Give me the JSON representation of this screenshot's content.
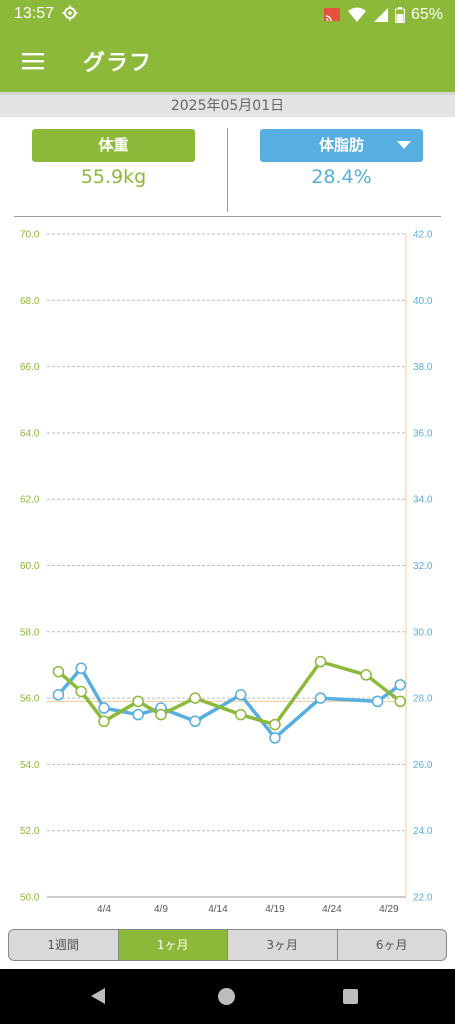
{
  "status_bar": {
    "time": "13:57",
    "battery": "65%",
    "icons": [
      "settings-icon",
      "cast-icon",
      "wifi-icon",
      "battery-icon"
    ]
  },
  "app_bar": {
    "title": "グラフ",
    "menu_icon": "hamburger-menu-icon"
  },
  "date": "2025年05月01日",
  "metrics": {
    "left": {
      "label": "体重",
      "value": "55.9kg",
      "color": "#8cb93a"
    },
    "right": {
      "label": "体脂肪",
      "value": "28.4%",
      "color": "#57aee0",
      "dropdown_icon": "caret-down-icon"
    }
  },
  "range_tabs": [
    {
      "label": "1週間",
      "active": false
    },
    {
      "label": "1ヶ月",
      "active": true
    },
    {
      "label": "3ヶ月",
      "active": false
    },
    {
      "label": "6ヶ月",
      "active": false
    }
  ],
  "colors": {
    "accent_green": "#8cb93a",
    "accent_blue": "#57aee0",
    "reference_line": "#f5c99a"
  },
  "nav_bar": {
    "icons": [
      "back-icon",
      "home-icon",
      "recents-icon"
    ]
  },
  "chart_data": {
    "type": "line",
    "x_tick_labels": [
      "4/4",
      "4/9",
      "4/14",
      "4/19",
      "4/24",
      "4/29"
    ],
    "left_axis": {
      "ylim": [
        50.0,
        70.0
      ],
      "ticks": [
        "50.0",
        "52.0",
        "54.0",
        "56.0",
        "58.0",
        "60.0",
        "62.0",
        "64.0",
        "66.0",
        "68.0",
        "70.0"
      ],
      "color": "#8cb93a"
    },
    "right_axis": {
      "ylim": [
        22.0,
        42.0
      ],
      "ticks": [
        "22.0",
        "24.0",
        "26.0",
        "28.0",
        "30.0",
        "32.0",
        "34.0",
        "36.0",
        "38.0",
        "40.0",
        "42.0"
      ],
      "color": "#57aee0"
    },
    "grid": true,
    "reference_line": {
      "axis": "left",
      "value": 55.9
    },
    "series": [
      {
        "axis": "left",
        "color": "#8cb93a",
        "x": [
          "3/31",
          "4/2",
          "4/4",
          "4/7",
          "4/9",
          "4/12",
          "4/16",
          "4/19",
          "4/23",
          "4/27",
          "4/30"
        ],
        "values": [
          56.8,
          56.2,
          55.3,
          55.9,
          55.5,
          56.0,
          55.5,
          55.2,
          57.1,
          56.7,
          55.9
        ]
      },
      {
        "axis": "right",
        "color": "#57aee0",
        "x": [
          "3/31",
          "4/2",
          "4/4",
          "4/7",
          "4/9",
          "4/12",
          "4/16",
          "4/19",
          "4/23",
          "4/28",
          "4/30"
        ],
        "values": [
          28.1,
          28.9,
          27.7,
          27.5,
          27.7,
          27.3,
          28.1,
          26.8,
          28.0,
          27.9,
          28.4
        ]
      }
    ]
  }
}
